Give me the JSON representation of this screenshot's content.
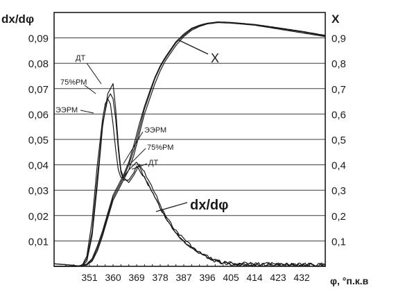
{
  "chart_data": {
    "type": "line",
    "y_left_label": "dx/dφ",
    "y_right_label": "X",
    "x_label": "φ, °п.к.в",
    "x_ticks": [
      "351",
      "360",
      "369",
      "378",
      "387",
      "396",
      "405",
      "414",
      "423",
      "432"
    ],
    "x_range": [
      337.5,
      441
    ],
    "y_left_ticks": [
      "0,01",
      "0,02",
      "0,03",
      "0,04",
      "0,05",
      "0,06",
      "0,07",
      "0,08",
      "0,09"
    ],
    "y_left_range": [
      0,
      0.1
    ],
    "y_right_ticks": [
      "0,1",
      "0,2",
      "0,3",
      "0,4",
      "0,5",
      "0,6",
      "0,7",
      "0,8",
      "0,9"
    ],
    "y_right_range": [
      0,
      1.0
    ],
    "grid": "horizontal",
    "line_color": "#1a1a1a",
    "annotations": {
      "x_curve": "X",
      "rate_curve": "dx/dφ",
      "top_dt": "ДТ",
      "top_75": "75%РМ",
      "top_eerm": "ЭЭРМ",
      "mid_eerm": "ЭЭРМ",
      "mid_75": "75%РМ",
      "mid_dt": "ДТ"
    },
    "series": [
      {
        "name": "ДТ",
        "axis": "left",
        "x": [
          337.5,
          344,
          348,
          350,
          352,
          354,
          356,
          358,
          360,
          361,
          362,
          363,
          364,
          366,
          368,
          369,
          370,
          372,
          374,
          376,
          378,
          380,
          382,
          384,
          386,
          388,
          390,
          392,
          394,
          396,
          398,
          400,
          402,
          405,
          410,
          415,
          420,
          425,
          432,
          441
        ],
        "y": [
          0.001,
          0.0005,
          0.0,
          0.002,
          0.012,
          0.032,
          0.055,
          0.068,
          0.072,
          0.062,
          0.048,
          0.038,
          0.035,
          0.033,
          0.036,
          0.038,
          0.04,
          0.037,
          0.033,
          0.029,
          0.024,
          0.02,
          0.017,
          0.014,
          0.012,
          0.01,
          0.008,
          0.006,
          0.005,
          0.004,
          0.003,
          0.002,
          0.0015,
          0.001,
          0.001,
          0.0008,
          0.0008,
          0.0005,
          0.0005,
          0.0005
        ]
      },
      {
        "name": "75%РМ",
        "axis": "left",
        "x": [
          337.5,
          344,
          348,
          350,
          352,
          354,
          356,
          358,
          359,
          360,
          361,
          362,
          363,
          364,
          366,
          368,
          369,
          370,
          372,
          374,
          376,
          378,
          380,
          382,
          384,
          386,
          388,
          390,
          392,
          394,
          396,
          398,
          400,
          402,
          405,
          410,
          415,
          420,
          425,
          432,
          441
        ],
        "y": [
          0.001,
          0.0005,
          0.0,
          0.003,
          0.014,
          0.035,
          0.056,
          0.066,
          0.068,
          0.066,
          0.058,
          0.046,
          0.037,
          0.034,
          0.034,
          0.037,
          0.039,
          0.038,
          0.035,
          0.031,
          0.027,
          0.023,
          0.019,
          0.016,
          0.013,
          0.011,
          0.009,
          0.007,
          0.006,
          0.0045,
          0.0035,
          0.0025,
          0.002,
          0.0015,
          0.001,
          0.001,
          0.0008,
          0.0008,
          0.0005,
          0.0005,
          0.0005
        ]
      },
      {
        "name": "ЭЭРМ",
        "axis": "left",
        "x": [
          337.5,
          344,
          348,
          350,
          352,
          354,
          356,
          357,
          358,
          359,
          360,
          361,
          362,
          363,
          364,
          366,
          368,
          369,
          370,
          372,
          374,
          376,
          378,
          380,
          382,
          384,
          386,
          388,
          390,
          392,
          394,
          396,
          398,
          400,
          402,
          405,
          410,
          415,
          420,
          425,
          432,
          441
        ],
        "y": [
          0.001,
          0.0005,
          0.0,
          0.004,
          0.018,
          0.04,
          0.058,
          0.064,
          0.066,
          0.064,
          0.056,
          0.046,
          0.038,
          0.035,
          0.035,
          0.038,
          0.04,
          0.041,
          0.039,
          0.035,
          0.031,
          0.027,
          0.023,
          0.019,
          0.016,
          0.013,
          0.011,
          0.009,
          0.007,
          0.006,
          0.0045,
          0.0035,
          0.0025,
          0.002,
          0.0015,
          0.001,
          0.001,
          0.0008,
          0.0008,
          0.0005,
          0.0005,
          0.0005
        ]
      },
      {
        "name": "X ДТ",
        "axis": "right",
        "x": [
          337.5,
          346,
          350,
          352,
          354,
          356,
          358,
          360,
          362,
          364,
          366,
          368,
          370,
          372,
          374,
          376,
          378,
          380,
          382,
          384,
          387,
          390,
          393,
          396,
          400,
          405,
          414,
          423,
          432,
          441
        ],
        "y": [
          0.0,
          0.0,
          0.005,
          0.02,
          0.06,
          0.12,
          0.19,
          0.26,
          0.3,
          0.34,
          0.38,
          0.44,
          0.52,
          0.6,
          0.66,
          0.72,
          0.77,
          0.81,
          0.84,
          0.87,
          0.905,
          0.93,
          0.945,
          0.955,
          0.96,
          0.958,
          0.95,
          0.935,
          0.92,
          0.905
        ]
      },
      {
        "name": "X 75%РМ",
        "axis": "right",
        "x": [
          337.5,
          346,
          350,
          352,
          354,
          356,
          358,
          360,
          362,
          364,
          366,
          368,
          370,
          372,
          374,
          376,
          378,
          380,
          382,
          384,
          387,
          390,
          393,
          396,
          400,
          405,
          414,
          423,
          432,
          441
        ],
        "y": [
          0.0,
          0.0,
          0.007,
          0.025,
          0.07,
          0.13,
          0.2,
          0.27,
          0.31,
          0.35,
          0.4,
          0.46,
          0.54,
          0.62,
          0.68,
          0.74,
          0.785,
          0.82,
          0.85,
          0.88,
          0.91,
          0.935,
          0.948,
          0.957,
          0.962,
          0.96,
          0.952,
          0.938,
          0.924,
          0.908
        ]
      },
      {
        "name": "X ЭЭРМ",
        "axis": "right",
        "x": [
          337.5,
          346,
          350,
          352,
          354,
          356,
          358,
          360,
          362,
          364,
          366,
          368,
          370,
          372,
          374,
          376,
          378,
          380,
          382,
          384,
          387,
          390,
          393,
          396,
          400,
          405,
          414,
          423,
          432,
          441
        ],
        "y": [
          0.0,
          0.0,
          0.009,
          0.03,
          0.08,
          0.14,
          0.21,
          0.28,
          0.32,
          0.36,
          0.41,
          0.48,
          0.56,
          0.63,
          0.69,
          0.745,
          0.79,
          0.825,
          0.855,
          0.885,
          0.915,
          0.938,
          0.95,
          0.958,
          0.963,
          0.961,
          0.953,
          0.94,
          0.926,
          0.91
        ]
      }
    ]
  }
}
